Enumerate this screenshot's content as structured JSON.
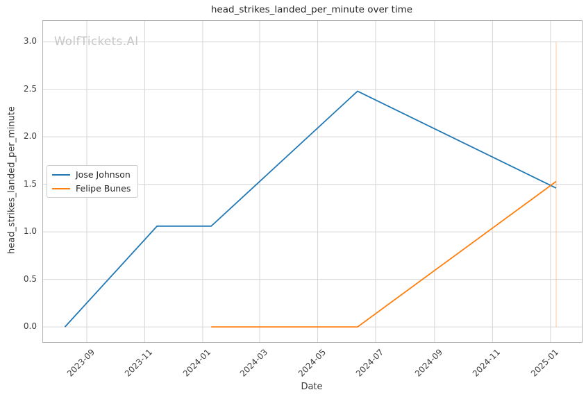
{
  "watermark": "WolfTickets.AI",
  "colors": {
    "grid": "#d6d6d6",
    "spine": "#b3b3b3",
    "text": "#3b3b3b",
    "title": "#262626",
    "watermark": "#c6c6c6",
    "series_blue": "#1f77b4",
    "series_orange": "#ff7f0e"
  },
  "chart_data": {
    "type": "line",
    "title": "head_strikes_landed_per_minute over time",
    "xlabel": "Date",
    "ylabel": "head_strikes_landed_per_minute",
    "x_domain": [
      "2023-07-17",
      "2025-02-03"
    ],
    "ylim": [
      -0.16,
      3.22
    ],
    "grid": true,
    "legend_position": "center-left",
    "y_ticks": [
      0.0,
      0.5,
      1.0,
      1.5,
      2.0,
      2.5,
      3.0
    ],
    "x_ticks": [
      {
        "date": "2023-09-01",
        "label": "2023-09"
      },
      {
        "date": "2023-11-01",
        "label": "2023-11"
      },
      {
        "date": "2024-01-01",
        "label": "2024-01"
      },
      {
        "date": "2024-03-01",
        "label": "2024-03"
      },
      {
        "date": "2024-05-01",
        "label": "2024-05"
      },
      {
        "date": "2024-07-01",
        "label": "2024-07"
      },
      {
        "date": "2024-09-01",
        "label": "2024-09"
      },
      {
        "date": "2024-11-01",
        "label": "2024-11"
      },
      {
        "date": "2025-01-01",
        "label": "2025-01"
      }
    ],
    "series": [
      {
        "name": "Jose Johnson",
        "color": "#1f77b4",
        "points": [
          [
            "2023-08-09",
            0.0
          ],
          [
            "2023-11-14",
            1.06
          ],
          [
            "2024-01-10",
            1.06
          ],
          [
            "2024-06-12",
            2.48
          ],
          [
            "2025-01-07",
            1.46
          ]
        ]
      },
      {
        "name": "Felipe Bunes",
        "color": "#ff7f0e",
        "points": [
          [
            "2024-01-10",
            0.0
          ],
          [
            "2024-06-12",
            0.0
          ],
          [
            "2025-01-07",
            1.53
          ]
        ]
      }
    ],
    "vline": {
      "date": "2025-01-07",
      "color": "#ff7f0e",
      "opacity": 0.35,
      "y_from": 0.0,
      "y_to": 3.0
    }
  }
}
